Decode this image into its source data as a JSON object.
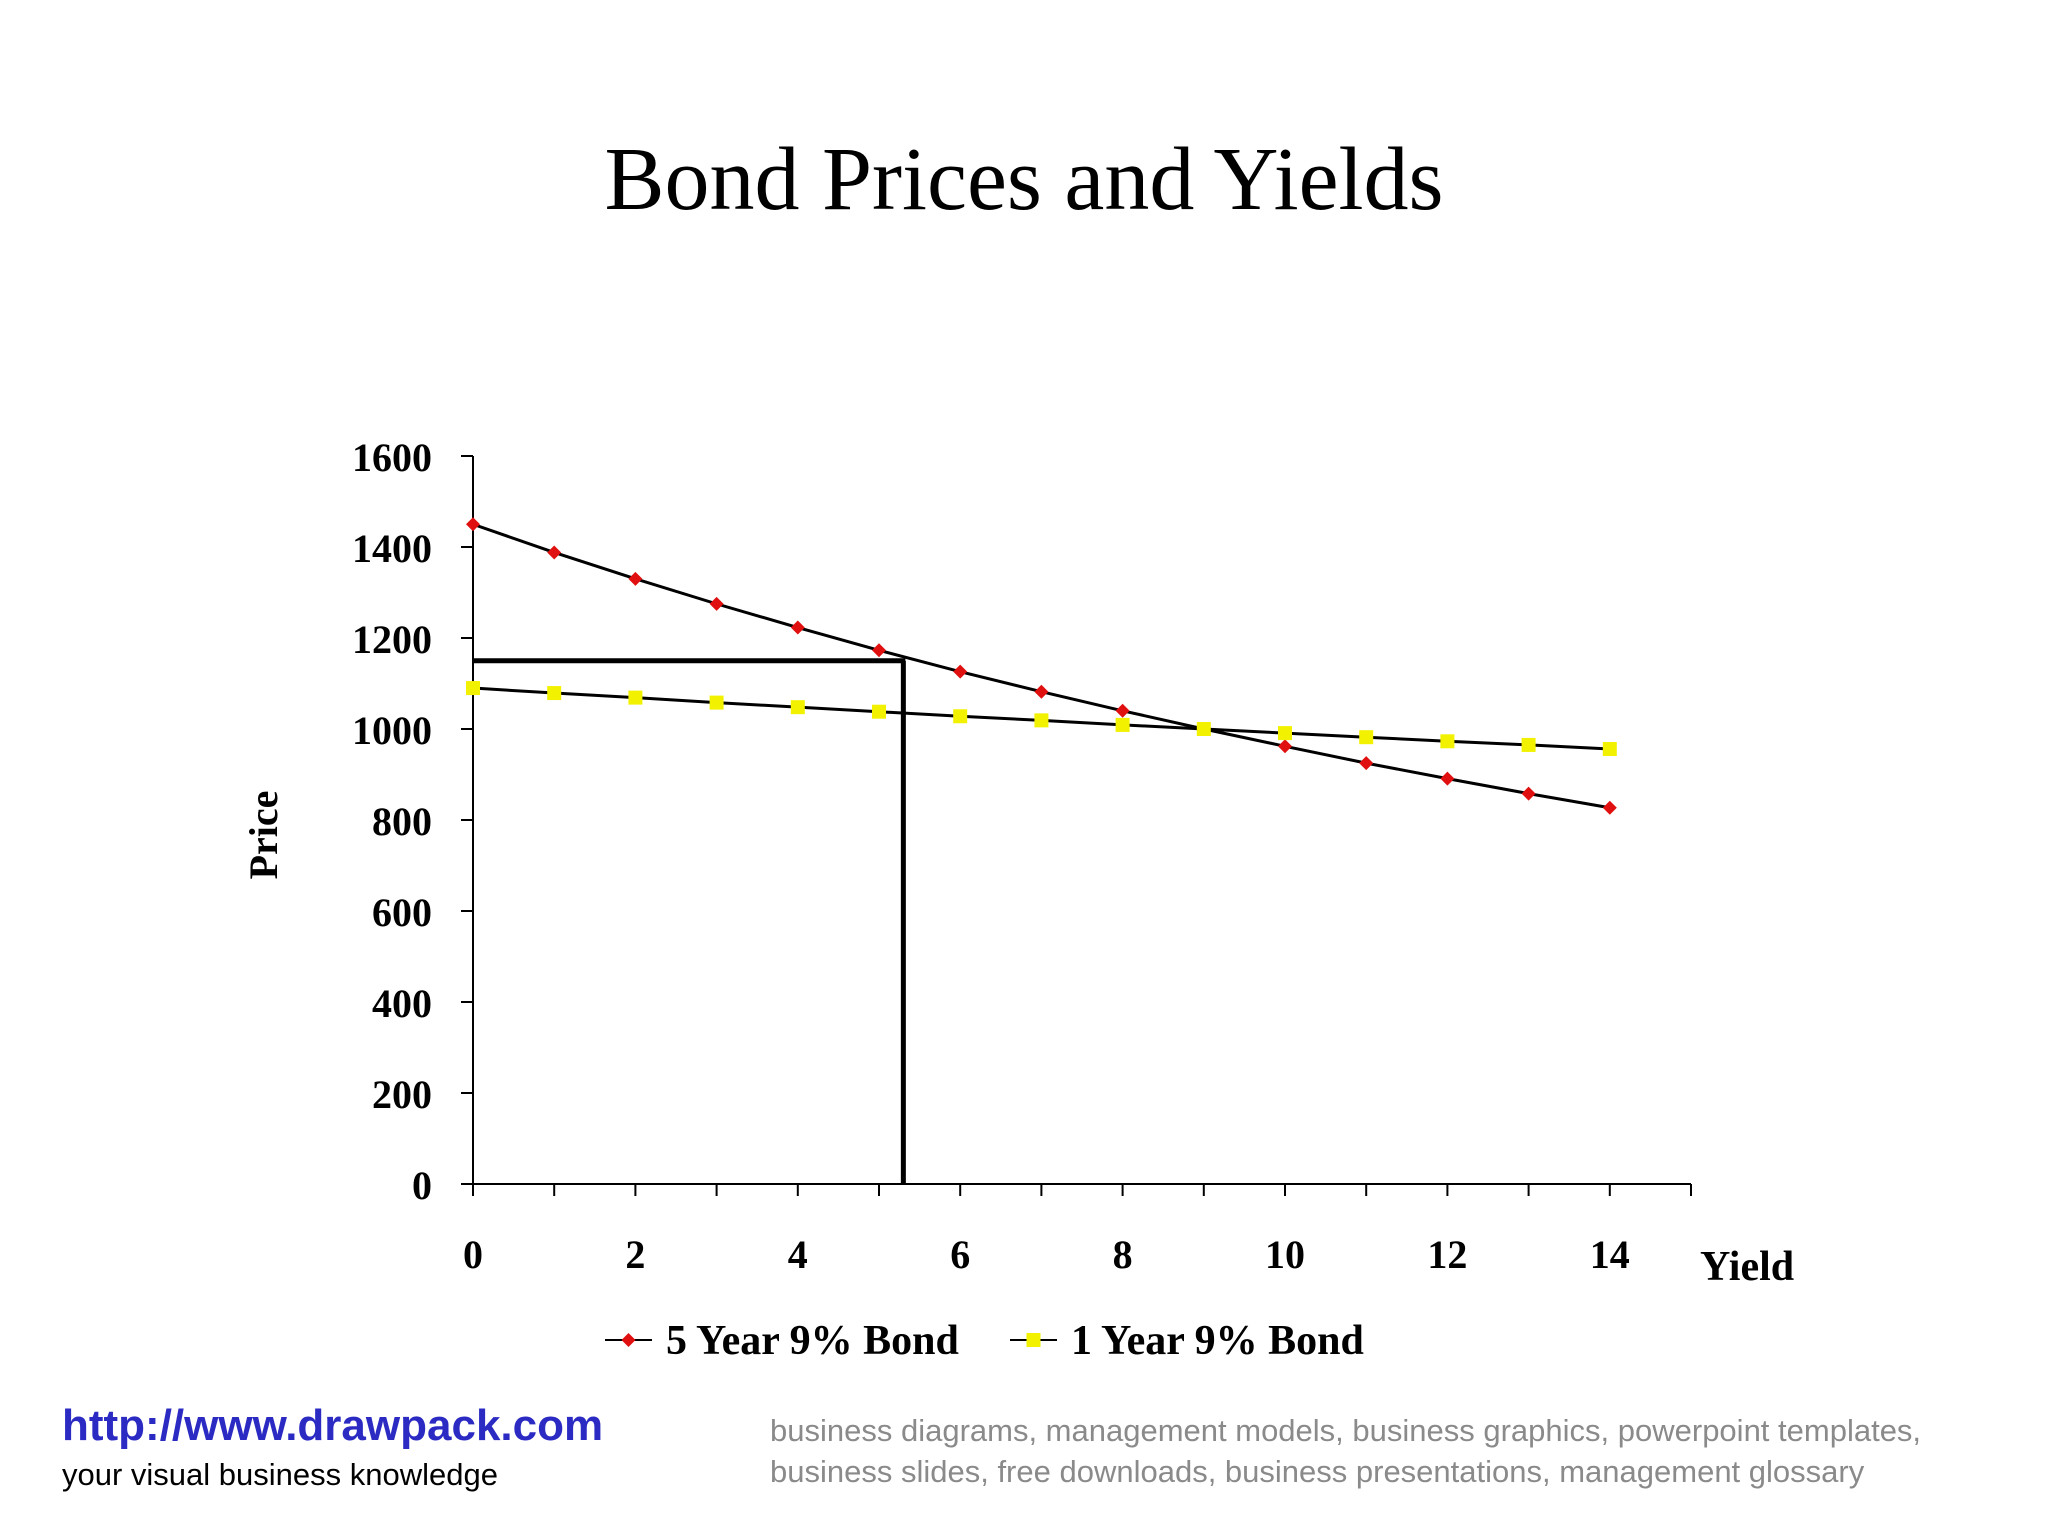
{
  "slide": {
    "title": "Bond Prices and Yields"
  },
  "footer": {
    "link": "http://www.drawpack.com",
    "tagline": "your visual business knowledge",
    "keywords": "business diagrams, management models, business graphics, powerpoint templates, business slides, free downloads, business presentations, management glossary"
  },
  "colors": {
    "series_5yr": "#e01010",
    "series_1yr": "#f2f200",
    "line": "#000000",
    "footer_link": "#2b2bc4",
    "footer_keywords": "#8a8a8a"
  },
  "chart_data": {
    "type": "line",
    "title": "Bond Prices and Yields",
    "xlabel": "Yield",
    "ylabel": "Price",
    "xlim": [
      0,
      15
    ],
    "ylim": [
      0,
      1600
    ],
    "x_ticks": [
      0,
      2,
      4,
      6,
      8,
      10,
      12,
      14
    ],
    "y_ticks": [
      0,
      200,
      400,
      600,
      800,
      1000,
      1200,
      1400,
      1600
    ],
    "grid": false,
    "legend_position": "bottom",
    "x": [
      0,
      1,
      2,
      3,
      4,
      5,
      6,
      7,
      8,
      9,
      10,
      11,
      12,
      13,
      14
    ],
    "series": [
      {
        "name": "5 Year 9% Bond",
        "marker": "diamond",
        "values": [
          1450,
          1388,
          1330,
          1275,
          1223,
          1173,
          1126,
          1082,
          1040,
          1000,
          962,
          925,
          891,
          858,
          827
        ]
      },
      {
        "name": "1 Year 9% Bond",
        "marker": "square",
        "values": [
          1090,
          1079,
          1069,
          1058,
          1048,
          1038,
          1028,
          1019,
          1009,
          1000,
          991,
          982,
          973,
          965,
          956
        ]
      }
    ],
    "reference_point": {
      "x": 5.3,
      "y": 1150
    }
  }
}
